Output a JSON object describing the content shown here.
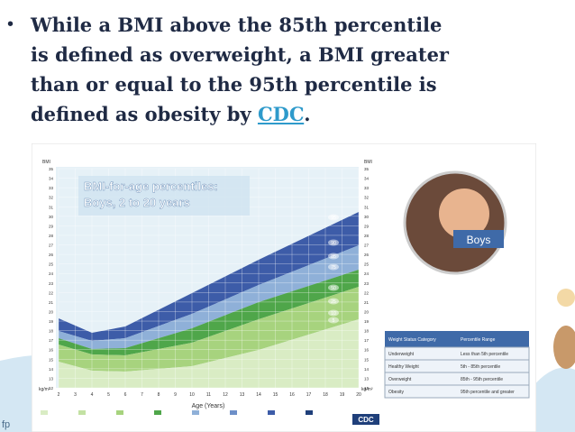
{
  "slide": {
    "bullet": "•",
    "lines": [
      "While a BMI above the 85th percentile",
      "is defined as overweight, a BMI greater",
      "than or equal to the 95th percentile is",
      "defined as obesity by "
    ],
    "link": "CDC",
    "end": ".",
    "footer_mark": "fp"
  },
  "figure": {
    "title_line1": "BMI-for-age percentiles:",
    "title_line2": "Boys, 2 to 20 years",
    "x_axis_label": "Age (Years)",
    "y_axis_label": "BMI",
    "unit": "kg/m²",
    "photo_label": "Boys",
    "logo": "CDC",
    "ages": [
      2,
      3,
      4,
      5,
      6,
      7,
      8,
      9,
      10,
      11,
      12,
      13,
      14,
      15,
      16,
      17,
      18,
      19,
      20
    ],
    "bmi_ticks": [
      12,
      13,
      14,
      15,
      16,
      17,
      18,
      19,
      20,
      21,
      22,
      23,
      24,
      25,
      26,
      27,
      28,
      29,
      30,
      31,
      32,
      33,
      34,
      35
    ],
    "percentile_labels": [
      95,
      90,
      85,
      75,
      50,
      25,
      10,
      5
    ],
    "table": {
      "header": [
        "Weight Status Category",
        "Percentile Range"
      ],
      "rows": [
        [
          "Underweight",
          "Less than 5th percentile"
        ],
        [
          "Healthy Weight",
          "5th - 85th percentile"
        ],
        [
          "Overweight",
          "85th - 95th percentile"
        ],
        [
          "Obesity",
          "95th percentile and greater"
        ]
      ]
    }
  }
}
